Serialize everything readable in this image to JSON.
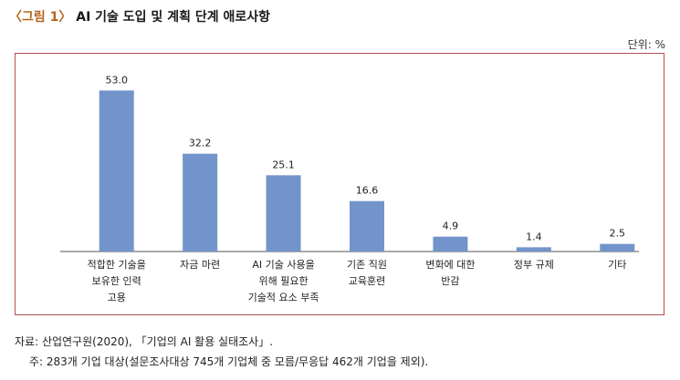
{
  "figure": {
    "number_label": "〈그림 1〉",
    "title": "AI 기술 도입 및 계획 단계 애로사항",
    "unit": "단위: %"
  },
  "footer": {
    "source": "자료: 산업연구원(2020), 「기업의 AI 활용 실태조사」.",
    "note": "주: 283개 기업 대상(설문조사대상 745개 기업체 중 모름/무응답 462개 기업을 제외)."
  },
  "chart_data": {
    "type": "bar",
    "title": "AI 기술 도입 및 계획 단계 애로사항",
    "ylabel": "",
    "xlabel": "",
    "unit": "%",
    "ylim": [
      0,
      60
    ],
    "grid": false,
    "bar_color": "#7294cb",
    "categories": [
      [
        "적합한 기술을",
        "보유한 인력",
        "고용"
      ],
      [
        "자금 마련"
      ],
      [
        "AI 기술 사용을",
        "위해 필요한",
        "기술적 요소 부족"
      ],
      [
        "기존 직원",
        "교육훈련"
      ],
      [
        "변화에 대한",
        "반감"
      ],
      [
        "정부 규제"
      ],
      [
        "기타"
      ]
    ],
    "values": [
      53.0,
      32.2,
      25.1,
      16.6,
      4.9,
      1.4,
      2.5
    ],
    "value_labels": [
      "53.0",
      "32.2",
      "25.1",
      "16.6",
      "4.9",
      "1.4",
      "2.5"
    ]
  }
}
